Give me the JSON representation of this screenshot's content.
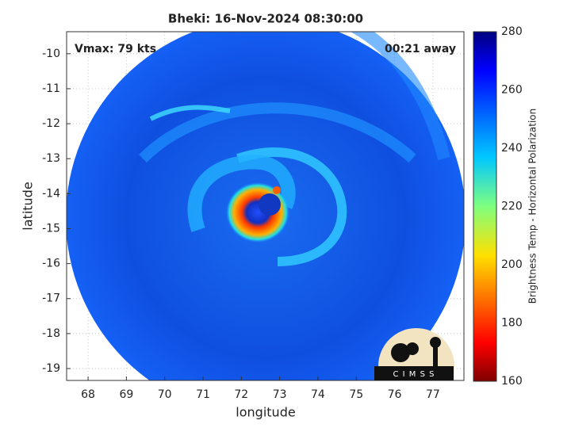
{
  "chart_data": {
    "type": "image",
    "title": "Bheki: 16-Nov-2024 08:30:00",
    "annotations": [
      "Vmax: 79 kts",
      "00:21 away"
    ],
    "xlabel": "longitude",
    "ylabel": "latitude",
    "xlim": [
      67.44,
      77.81
    ],
    "ylim": [
      -19.34,
      -9.37
    ],
    "xticks": [
      68,
      69,
      70,
      71,
      72,
      73,
      74,
      75,
      76,
      77
    ],
    "yticks": [
      -19,
      -18,
      -17,
      -16,
      -15,
      -14,
      -13,
      -12,
      -11,
      -10
    ],
    "grid": true,
    "colorbar": {
      "label": "Brightness Temp - Horizontal Polarization",
      "lim": [
        160,
        280
      ],
      "ticks": [
        160,
        180,
        200,
        220,
        240,
        260,
        280
      ]
    },
    "logo": "C I M S S"
  }
}
